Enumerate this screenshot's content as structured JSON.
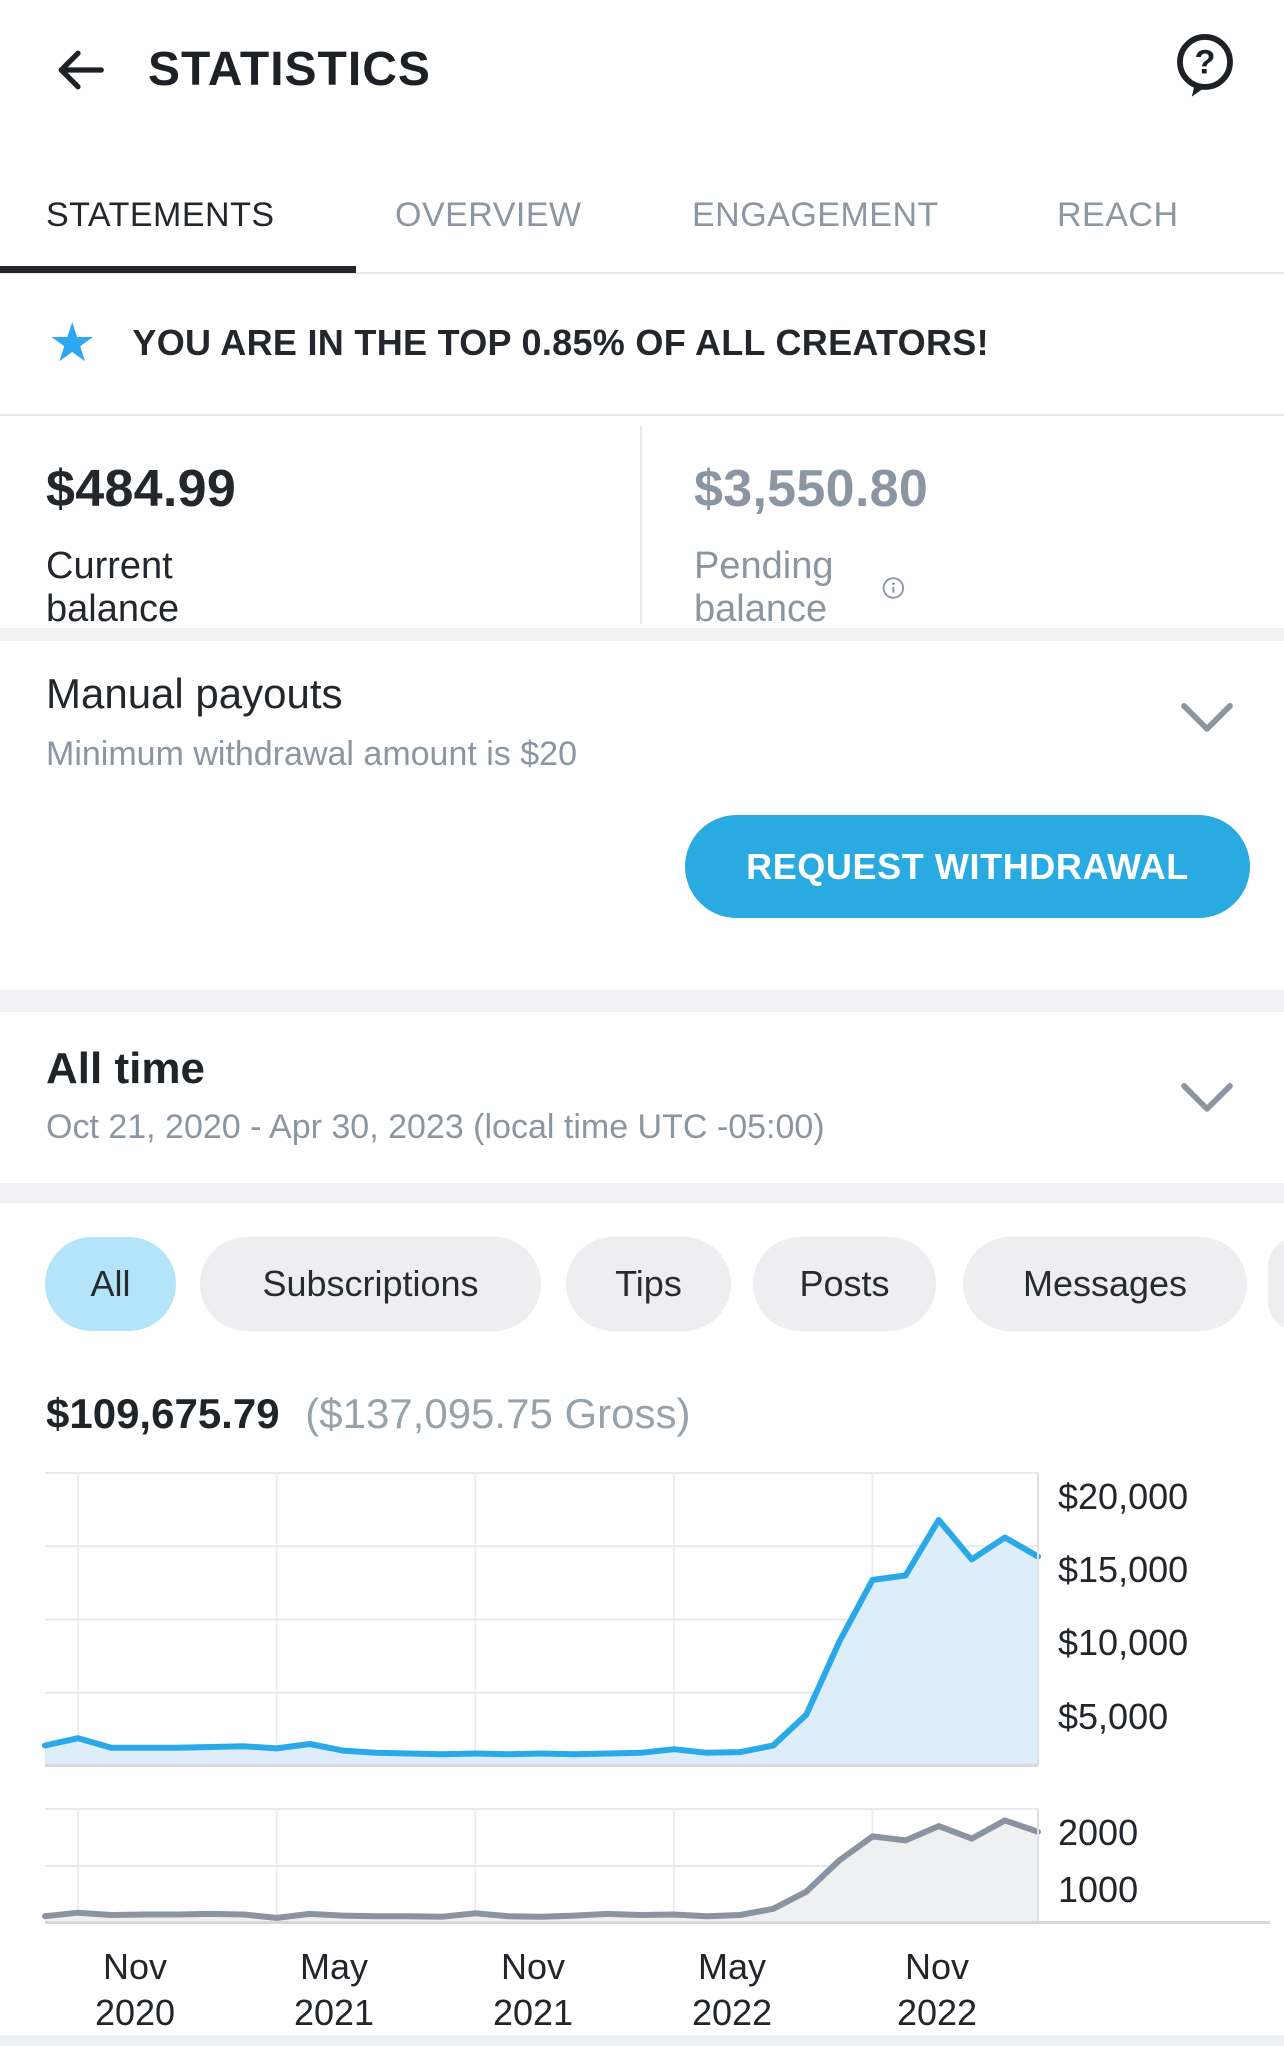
{
  "header": {
    "title": "STATISTICS"
  },
  "tabs": [
    {
      "label": "STATEMENTS",
      "active": true
    },
    {
      "label": "OVERVIEW",
      "active": false
    },
    {
      "label": "ENGAGEMENT",
      "active": false
    },
    {
      "label": "REACH",
      "active": false
    }
  ],
  "banner": {
    "text": "YOU ARE IN THE TOP 0.85% OF ALL CREATORS!"
  },
  "balances": {
    "current": {
      "amount": "$484.99",
      "label": "Current balance"
    },
    "pending": {
      "amount": "$3,550.80",
      "label": "Pending balance"
    }
  },
  "payouts": {
    "title": "Manual payouts",
    "subtitle": "Minimum withdrawal amount is $20",
    "button_label": "REQUEST WITHDRAWAL"
  },
  "period": {
    "title": "All time",
    "range": "Oct 21, 2020 - Apr 30, 2023 (local time UTC -05:00)"
  },
  "filters": [
    {
      "label": "All",
      "active": true
    },
    {
      "label": "Subscriptions",
      "active": false
    },
    {
      "label": "Tips",
      "active": false
    },
    {
      "label": "Posts",
      "active": false
    },
    {
      "label": "Messages",
      "active": false
    }
  ],
  "summary": {
    "net": "$109,675.79",
    "gross": "($137,095.75 Gross)"
  },
  "colors": {
    "accent_blue": "#29abe2",
    "chip_active_bg": "#b4e4f9",
    "star_blue": "#2fa7f0",
    "muted_gray": "#8b96a2",
    "dark_text": "#23272b"
  },
  "chart_data": [
    {
      "type": "area",
      "title": "",
      "x": [
        "Oct 2020",
        "Nov 2020",
        "Dec 2020",
        "Jan 2021",
        "Feb 2021",
        "Mar 2021",
        "Apr 2021",
        "May 2021",
        "Jun 2021",
        "Jul 2021",
        "Aug 2021",
        "Sep 2021",
        "Oct 2021",
        "Nov 2021",
        "Dec 2021",
        "Jan 2022",
        "Feb 2022",
        "Mar 2022",
        "Apr 2022",
        "May 2022",
        "Jun 2022",
        "Jul 2022",
        "Aug 2022",
        "Sep 2022",
        "Oct 2022",
        "Nov 2022",
        "Dec 2022",
        "Jan 2023",
        "Feb 2023",
        "Mar 2023",
        "Apr 2023"
      ],
      "values": [
        1400,
        1900,
        1250,
        1250,
        1250,
        1300,
        1350,
        1200,
        1500,
        1050,
        900,
        850,
        800,
        850,
        800,
        850,
        800,
        850,
        900,
        1150,
        900,
        950,
        1400,
        3500,
        8500,
        12700,
        13000,
        16800,
        14100,
        15600,
        14300
      ],
      "ylim": [
        0,
        20000
      ],
      "y_gridlines": [
        5000,
        10000,
        15000,
        20000
      ],
      "y_tick_labels": [
        "$20,000",
        "$15,000",
        "$10,000",
        "$5,000"
      ],
      "x_gridline_indices": [
        1,
        7,
        13,
        19,
        25
      ],
      "x_ticks": [
        {
          "month": "Nov",
          "year": "2020"
        },
        {
          "month": "May",
          "year": "2021"
        },
        {
          "month": "Nov",
          "year": "2021"
        },
        {
          "month": "May",
          "year": "2022"
        },
        {
          "month": "Nov",
          "year": "2022"
        }
      ],
      "grid": true,
      "legend": "none",
      "line_color": "#2aa9e8",
      "fill_color": "#ddeefa"
    },
    {
      "type": "area",
      "title": "",
      "x": [
        "Oct 2020",
        "Nov 2020",
        "Dec 2020",
        "Jan 2021",
        "Feb 2021",
        "Mar 2021",
        "Apr 2021",
        "May 2021",
        "Jun 2021",
        "Jul 2021",
        "Aug 2021",
        "Sep 2021",
        "Oct 2021",
        "Nov 2021",
        "Dec 2021",
        "Jan 2022",
        "Feb 2022",
        "Mar 2022",
        "Apr 2022",
        "May 2022",
        "Jun 2022",
        "Jul 2022",
        "Aug 2022",
        "Sep 2022",
        "Oct 2022",
        "Nov 2022",
        "Dec 2022",
        "Jan 2023",
        "Feb 2023",
        "Mar 2023",
        "Apr 2023"
      ],
      "values": [
        120,
        180,
        140,
        150,
        150,
        160,
        150,
        90,
        160,
        130,
        120,
        120,
        110,
        170,
        120,
        110,
        130,
        160,
        140,
        150,
        120,
        140,
        250,
        550,
        1100,
        1520,
        1450,
        1700,
        1480,
        1800,
        1600
      ],
      "ylim": [
        0,
        2000
      ],
      "y_gridlines": [
        1000,
        2000
      ],
      "y_tick_labels": [
        "2000",
        "1000"
      ],
      "x_gridline_indices": [
        1,
        7,
        13,
        19,
        25
      ],
      "grid": true,
      "legend": "none",
      "line_color": "#8a93a0",
      "fill_color": "#eef0f2"
    }
  ]
}
